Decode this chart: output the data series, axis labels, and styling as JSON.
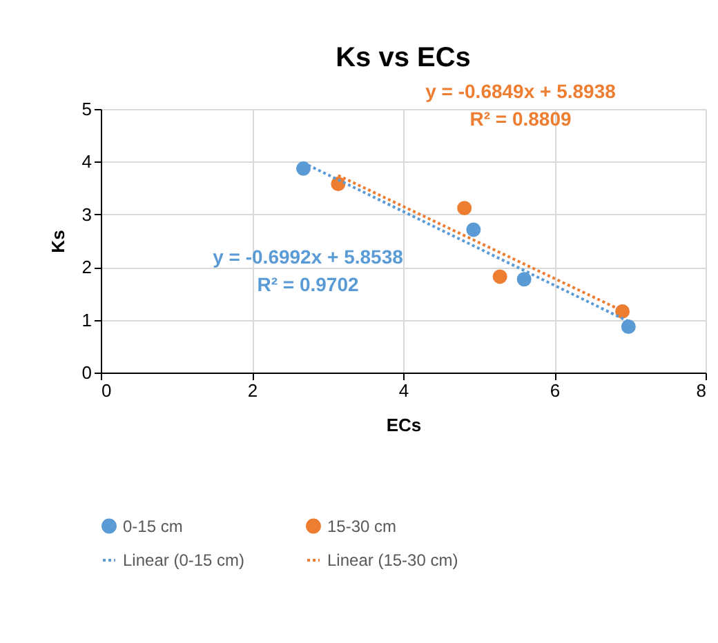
{
  "chart_data": {
    "type": "scatter",
    "title": "Ks vs ECs",
    "xlabel": "ECs",
    "ylabel": "Ks",
    "xlim": [
      0,
      8
    ],
    "xticks": [
      0,
      2,
      4,
      6,
      8
    ],
    "ylim": [
      0,
      5
    ],
    "yticks": [
      0,
      1,
      2,
      3,
      4,
      5
    ],
    "grid": true,
    "legend": "bottom",
    "series": [
      {
        "name": "0-15 cm",
        "marker": "circle",
        "color": "#5b9bd5",
        "x": [
          2.68,
          4.93,
          5.6,
          6.98
        ],
        "values": [
          3.87,
          2.71,
          1.77,
          0.87
        ]
      },
      {
        "name": "15-30 cm",
        "marker": "circle",
        "color": "#ed7d31",
        "x": [
          3.14,
          4.81,
          5.28,
          6.9
        ],
        "values": [
          3.58,
          3.12,
          1.82,
          1.16
        ]
      },
      {
        "name": "Linear (0-15 cm)",
        "type": "line",
        "line_style": "dotted",
        "color": "#5b9bd5",
        "x": [
          2.68,
          6.98
        ],
        "values": [
          3.98,
          0.97
        ]
      },
      {
        "name": "Linear (15-30 cm)",
        "type": "line",
        "line_style": "dotted",
        "color": "#ed7d31",
        "x": [
          3.14,
          6.9
        ],
        "values": [
          3.74,
          1.17
        ]
      }
    ],
    "annotations": [
      "y = -0.6992x + 5.8538\nR² = 0.9702",
      "y = -0.6849x + 5.8938\nR² = 0.8809"
    ]
  }
}
